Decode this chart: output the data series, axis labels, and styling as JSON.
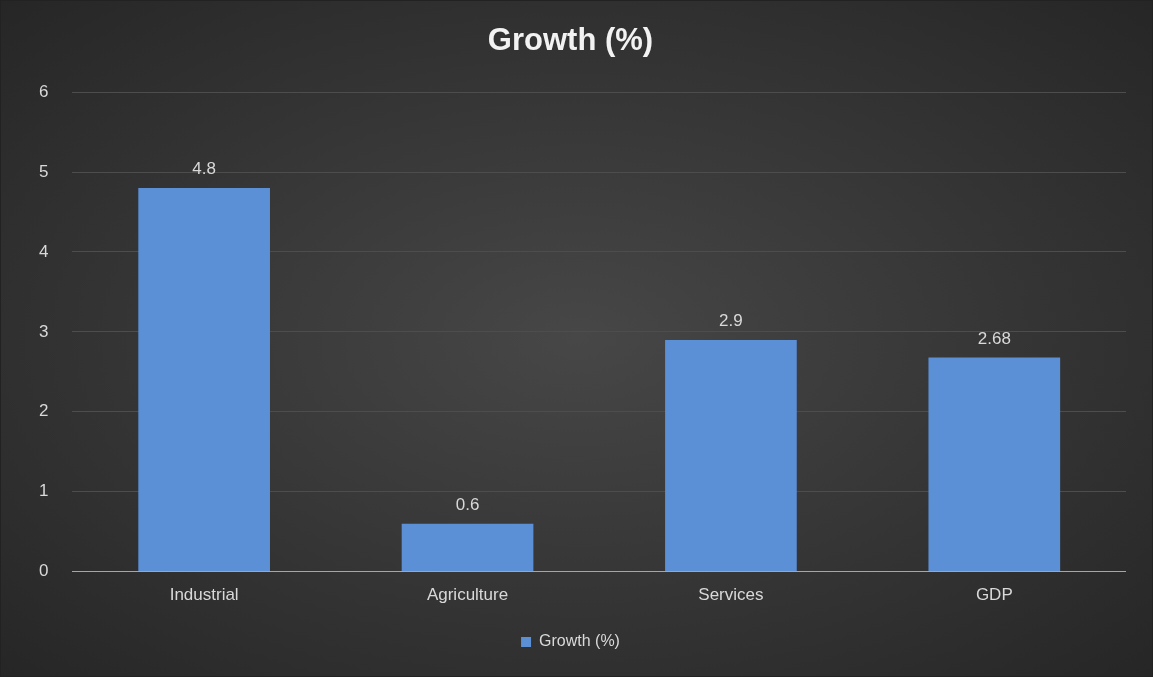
{
  "chart_data": {
    "type": "bar",
    "title": "Growth (%)",
    "categories": [
      "Industrial",
      "Agriculture",
      "Services",
      "GDP"
    ],
    "series": [
      {
        "name": "Growth (%)",
        "color": "#5b8fd6",
        "values": [
          4.8,
          0.6,
          2.9,
          2.68
        ]
      }
    ],
    "ylim": [
      0,
      6
    ],
    "yticks": [
      0,
      1,
      2,
      3,
      4,
      5,
      6
    ],
    "grid": "y",
    "legend": "bottom",
    "data_labels": true
  }
}
